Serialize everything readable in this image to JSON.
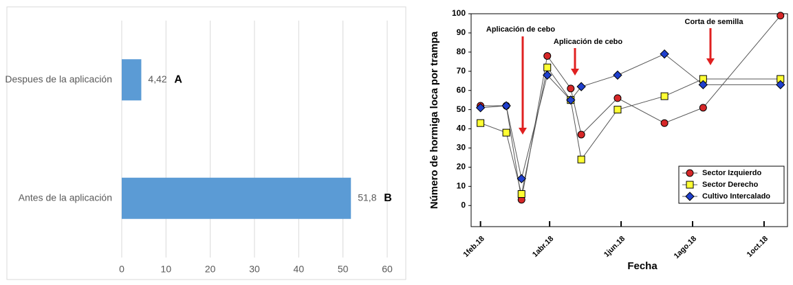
{
  "chart_data": [
    {
      "type": "bar",
      "orientation": "horizontal",
      "categories": [
        "Despues de la aplicación",
        "Antes de la aplicación"
      ],
      "values": [
        4.42,
        51.8
      ],
      "value_labels": [
        "4,42",
        "51,8"
      ],
      "labels": [
        "A",
        "B"
      ],
      "color": "#5b9bd5",
      "xlim": [
        0,
        60
      ],
      "xticks": [
        0,
        10,
        20,
        30,
        40,
        50,
        60
      ],
      "grid": true
    },
    {
      "type": "line",
      "xlabel": "Fecha",
      "ylabel": "Número de hormiga loca por trampa",
      "annotations": [
        "Aplicación de cebo",
        "Aplicación de cebo",
        "Corta de semilla"
      ],
      "x": [
        0,
        22,
        35,
        57,
        77,
        86,
        117,
        157,
        190,
        256
      ],
      "series": [
        {
          "name": "Sector Izquierdo",
          "color": "#d62728",
          "marker": "circle",
          "values": [
            52,
            52,
            3,
            78,
            61,
            37,
            56,
            43,
            51,
            99
          ]
        },
        {
          "name": "Sector Derecho",
          "color": "#ffff33",
          "marker": "square",
          "values": [
            43,
            38,
            6,
            72,
            55,
            24,
            50,
            57,
            66,
            66
          ]
        },
        {
          "name": "Cultivo Intercalado",
          "color": "#1f3fcc",
          "marker": "diamond",
          "values": [
            51,
            52,
            14,
            68,
            55,
            62,
            68,
            79,
            63,
            63
          ]
        }
      ],
      "line_color": "#555555",
      "xlim": [
        -8,
        262
      ],
      "xticks": [
        {
          "value": 0,
          "label": "1feb.18"
        },
        {
          "value": 59,
          "label": "1abr.18"
        },
        {
          "value": 120,
          "label": "1jun.18"
        },
        {
          "value": 181,
          "label": "1ago.18"
        },
        {
          "value": 242,
          "label": "1oct.18"
        }
      ],
      "ylim": [
        -11,
        100
      ],
      "yticks": [
        0,
        10,
        20,
        30,
        40,
        50,
        60,
        70,
        80,
        90,
        100
      ],
      "legend": "lower right"
    }
  ]
}
